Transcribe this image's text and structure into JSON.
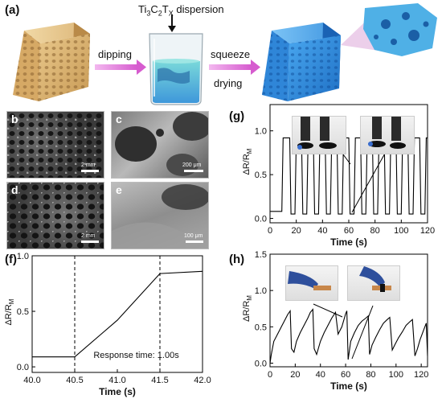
{
  "panels": {
    "a": "(a)",
    "b": "b",
    "c": "c",
    "d": "d",
    "e": "e",
    "f": "(f)",
    "g": "(g)",
    "h": "(h)"
  },
  "schematic": {
    "dispersion_label_prefix": "Ti",
    "dispersion_label_sub1": "3",
    "dispersion_label_mid": "C",
    "dispersion_label_sub2": "2",
    "dispersion_label_t": "T",
    "dispersion_label_sub3": "X",
    "dispersion_label_suffix": " dispersion",
    "step1": "dipping",
    "step2": "squeeze",
    "step3": "drying",
    "colors": {
      "sponge": "#d8b274",
      "coated": "#2f8fe0",
      "arrow": "#e07ad8"
    }
  },
  "sem": {
    "b_scale": "2 mm",
    "c_scale": "200 μm",
    "d_scale": "2 mm",
    "e_scale": "100 μm"
  },
  "chart_data": [
    {
      "id": "f",
      "type": "line",
      "xlabel": "Time (s)",
      "ylabel_main": "ΔR/R",
      "ylabel_sub": "M",
      "xlim": [
        40.0,
        42.0
      ],
      "ylim": [
        -0.05,
        1.0
      ],
      "xticks": [
        "40.0",
        "40.5",
        "41.0",
        "41.5",
        "42.0"
      ],
      "xtick_values": [
        40.0,
        40.5,
        41.0,
        41.5,
        42.0
      ],
      "yticks": [
        "0.0",
        "0.5",
        "1.0"
      ],
      "ytick_values": [
        0.0,
        0.5,
        1.0
      ],
      "annotation": "Response time:  1.00s",
      "vlines": [
        40.5,
        41.5
      ],
      "series": [
        {
          "x": [
            40.0,
            40.5,
            41.0,
            41.5,
            42.0
          ],
          "y": [
            0.09,
            0.09,
            0.42,
            0.84,
            0.86
          ]
        }
      ]
    },
    {
      "id": "g",
      "type": "line",
      "xlabel": "Time (s)",
      "ylabel_main": "ΔR/R",
      "ylabel_sub": "M",
      "xlim": [
        0,
        120
      ],
      "ylim": [
        -0.05,
        1.3
      ],
      "xticks": [
        "0",
        "20",
        "40",
        "60",
        "80",
        "100",
        "120"
      ],
      "xtick_values": [
        0,
        20,
        40,
        60,
        80,
        100,
        120
      ],
      "yticks": [
        "0.0",
        "0.5",
        "1.0"
      ],
      "ytick_values": [
        0.0,
        0.5,
        1.0
      ],
      "series": [
        {
          "x": [
            0,
            9,
            10,
            15,
            16,
            19,
            20,
            24,
            25,
            28,
            29,
            33,
            34,
            37,
            38,
            42,
            43,
            46,
            47,
            51,
            52,
            55,
            56,
            60,
            61,
            64,
            65,
            69,
            70,
            73,
            74,
            78,
            79,
            82,
            83,
            87,
            88,
            91,
            92,
            96,
            97,
            100,
            101,
            105,
            106,
            109,
            110,
            114,
            115,
            118,
            119,
            120
          ],
          "y": [
            0.08,
            0.08,
            0.92,
            0.92,
            0.05,
            0.05,
            0.92,
            0.92,
            0.05,
            0.05,
            0.92,
            0.92,
            0.05,
            0.05,
            0.92,
            0.92,
            0.05,
            0.05,
            0.92,
            0.92,
            0.05,
            0.05,
            0.92,
            0.92,
            0.05,
            0.05,
            0.92,
            0.92,
            0.05,
            0.05,
            0.92,
            0.92,
            0.05,
            0.05,
            0.92,
            0.92,
            0.05,
            0.05,
            0.92,
            0.92,
            0.05,
            0.05,
            0.92,
            0.92,
            0.05,
            0.05,
            0.92,
            0.92,
            0.05,
            0.05,
            0.92,
            0.92
          ]
        }
      ]
    },
    {
      "id": "h",
      "type": "line",
      "xlabel": "Time (s)",
      "ylabel_main": "ΔR/R",
      "ylabel_sub": "M",
      "xlim": [
        0,
        125
      ],
      "ylim": [
        -0.05,
        1.5
      ],
      "xticks": [
        "0",
        "20",
        "40",
        "60",
        "80",
        "100",
        "120"
      ],
      "xtick_values": [
        0,
        20,
        40,
        60,
        80,
        100,
        120
      ],
      "yticks": [
        "0.0",
        "0.5",
        "1.0",
        "1.5"
      ],
      "ytick_values": [
        0.0,
        0.5,
        1.0,
        1.5
      ],
      "series": [
        {
          "x": [
            0,
            1,
            3,
            6,
            9,
            12,
            14,
            16,
            17,
            19,
            21,
            24,
            27,
            30,
            32,
            34,
            35,
            37,
            40,
            43,
            46,
            49,
            52,
            53,
            54,
            57,
            60,
            61,
            62,
            64,
            67,
            70,
            73,
            76,
            78,
            79,
            81,
            84,
            87,
            90,
            93,
            95,
            97,
            99,
            102,
            105,
            108,
            111,
            113,
            115,
            117,
            119,
            122,
            124,
            125
          ],
          "y": [
            0.0,
            0.12,
            0.3,
            0.4,
            0.5,
            0.6,
            0.67,
            0.72,
            0.2,
            0.15,
            0.3,
            0.42,
            0.52,
            0.62,
            0.7,
            0.74,
            0.2,
            0.12,
            0.3,
            0.42,
            0.52,
            0.62,
            0.7,
            0.55,
            0.4,
            0.5,
            0.68,
            0.72,
            0.05,
            0.3,
            0.42,
            0.52,
            0.58,
            0.62,
            0.65,
            0.12,
            0.25,
            0.36,
            0.46,
            0.55,
            0.6,
            0.63,
            0.18,
            0.25,
            0.35,
            0.43,
            0.52,
            0.57,
            0.6,
            0.1,
            0.2,
            0.32,
            0.46,
            0.55,
            0.1
          ]
        }
      ]
    }
  ]
}
